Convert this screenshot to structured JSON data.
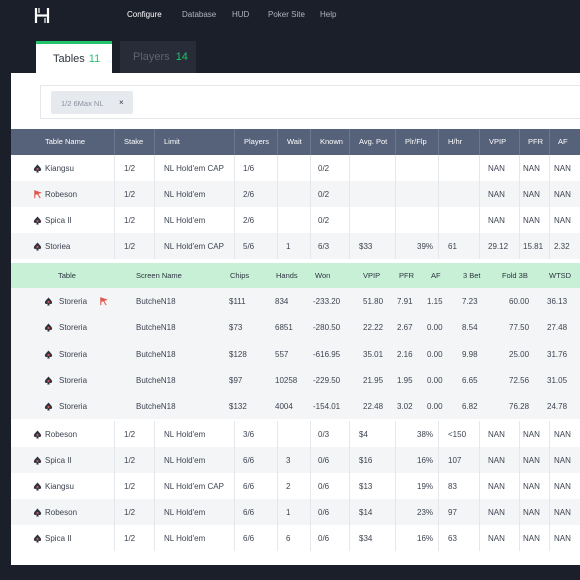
{
  "nav": {
    "items": [
      {
        "label": "Configure",
        "active": true
      },
      {
        "label": "Database",
        "active": false
      },
      {
        "label": "HUD",
        "active": false
      },
      {
        "label": "Poker Site",
        "active": false
      },
      {
        "label": "Help",
        "active": false
      }
    ]
  },
  "tabs": {
    "tables": {
      "label": "Tables",
      "count": "11"
    },
    "players": {
      "label": "Players",
      "count": "14"
    }
  },
  "filter": {
    "chip_label": "1/2 6Max NL",
    "close": "×"
  },
  "table": {
    "headers": [
      "Table Name",
      "Stake",
      "Limit",
      "Players",
      "Wait",
      "Known",
      "Avg. Pot",
      "Plr/Flp",
      "H/hr",
      "VPIP",
      "PFR",
      "AF"
    ],
    "rows_top": [
      {
        "name": "Kiangsu",
        "stake": "1/2",
        "limit": "NL Hold'em CAP",
        "players": "1/6",
        "wait": "",
        "known": "0/2",
        "avg_pot": "",
        "plr_flp": "",
        "hhr": "",
        "vpip": "NAN",
        "pfr": "NAN",
        "af": "NAN",
        "icon": "spade-icon"
      },
      {
        "name": "Robeson",
        "stake": "1/2",
        "limit": "NL Hold'em",
        "players": "2/6",
        "wait": "",
        "known": "0/2",
        "avg_pot": "",
        "plr_flp": "",
        "hhr": "",
        "vpip": "NAN",
        "pfr": "NAN",
        "af": "NAN",
        "icon": "flag-icon"
      },
      {
        "name": "Spica II",
        "stake": "1/2",
        "limit": "NL Hold'em",
        "players": "2/6",
        "wait": "",
        "known": "0/2",
        "avg_pot": "",
        "plr_flp": "",
        "hhr": "",
        "vpip": "NAN",
        "pfr": "NAN",
        "af": "NAN",
        "icon": "spade-icon"
      },
      {
        "name": "Storiea",
        "stake": "1/2",
        "limit": "NL Hold'em CAP",
        "players": "5/6",
        "wait": "1",
        "known": "6/3",
        "avg_pot": "$33",
        "plr_flp": "39%",
        "hhr": "61",
        "vpip": "29.12",
        "pfr": "15.81",
        "af": "2.32",
        "icon": "spade-icon"
      }
    ],
    "sub_headers": [
      "Table",
      "Screen Name",
      "Chips",
      "Hands",
      "Won",
      "VPIP",
      "PFR",
      "AF",
      "3 Bet",
      "Fold 3B",
      "WTSD"
    ],
    "sub_rows": [
      {
        "table": "Storeria",
        "screen": "ButcheN18",
        "chips": "$111",
        "hands": "834",
        "won": "-233.20",
        "vpip": "51.80",
        "pfr": "7.91",
        "af": "1.15",
        "bet3": "7.23",
        "fold3b": "60.00",
        "wtsd": "36.13",
        "flag": true
      },
      {
        "table": "Storeria",
        "screen": "ButcheN18",
        "chips": "$73",
        "hands": "6851",
        "won": "-280.50",
        "vpip": "22.22",
        "pfr": "2.67",
        "af": "0.00",
        "bet3": "8.54",
        "fold3b": "77.50",
        "wtsd": "27.48",
        "flag": false
      },
      {
        "table": "Storeria",
        "screen": "ButcheN18",
        "chips": "$128",
        "hands": "557",
        "won": "-616.95",
        "vpip": "35.01",
        "pfr": "2.16",
        "af": "0.00",
        "bet3": "9.98",
        "fold3b": "25.00",
        "wtsd": "31.76",
        "flag": false
      },
      {
        "table": "Storeria",
        "screen": "ButcheN18",
        "chips": "$97",
        "hands": "10258",
        "won": "-229.50",
        "vpip": "21.95",
        "pfr": "1.95",
        "af": "0.00",
        "bet3": "6.65",
        "fold3b": "72.56",
        "wtsd": "31.05",
        "flag": false
      },
      {
        "table": "Storeria",
        "screen": "ButcheN18",
        "chips": "$132",
        "hands": "4004",
        "won": "-154.01",
        "vpip": "22.48",
        "pfr": "3.02",
        "af": "0.00",
        "bet3": "6.82",
        "fold3b": "76.28",
        "wtsd": "24.78",
        "flag": false
      }
    ],
    "rows_bottom": [
      {
        "name": "Robeson",
        "stake": "1/2",
        "limit": "NL Hold'em",
        "players": "3/6",
        "wait": "",
        "known": "0/3",
        "avg_pot": "$4",
        "plr_flp": "38%",
        "hhr": "<150",
        "vpip": "NAN",
        "pfr": "NAN",
        "af": "NAN",
        "icon": "spade-icon"
      },
      {
        "name": "Spica II",
        "stake": "1/2",
        "limit": "NL Hold'em",
        "players": "6/6",
        "wait": "3",
        "known": "0/6",
        "avg_pot": "$16",
        "plr_flp": "16%",
        "hhr": "107",
        "vpip": "NAN",
        "pfr": "NAN",
        "af": "NAN",
        "icon": "spade-icon"
      },
      {
        "name": "Kiangsu",
        "stake": "1/2",
        "limit": "NL Hold'em CAP",
        "players": "6/6",
        "wait": "2",
        "known": "0/6",
        "avg_pot": "$13",
        "plr_flp": "19%",
        "hhr": "83",
        "vpip": "NAN",
        "pfr": "NAN",
        "af": "NAN",
        "icon": "spade-icon"
      },
      {
        "name": "Robeson",
        "stake": "1/2",
        "limit": "NL Hold'em",
        "players": "6/6",
        "wait": "1",
        "known": "0/6",
        "avg_pot": "$14",
        "plr_flp": "23%",
        "hhr": "97",
        "vpip": "NAN",
        "pfr": "NAN",
        "af": "NAN",
        "icon": "spade-icon"
      },
      {
        "name": "Spica II",
        "stake": "1/2",
        "limit": "NL Hold'em",
        "players": "6/6",
        "wait": "6",
        "known": "0/6",
        "avg_pot": "$34",
        "plr_flp": "16%",
        "hhr": "63",
        "vpip": "NAN",
        "pfr": "NAN",
        "af": "NAN",
        "icon": "spade-icon"
      }
    ]
  },
  "colors": {
    "accent": "#22c36a",
    "header_bg": "#566279",
    "subheader_bg": "#c7f0d6",
    "flag": "#e0584d"
  }
}
